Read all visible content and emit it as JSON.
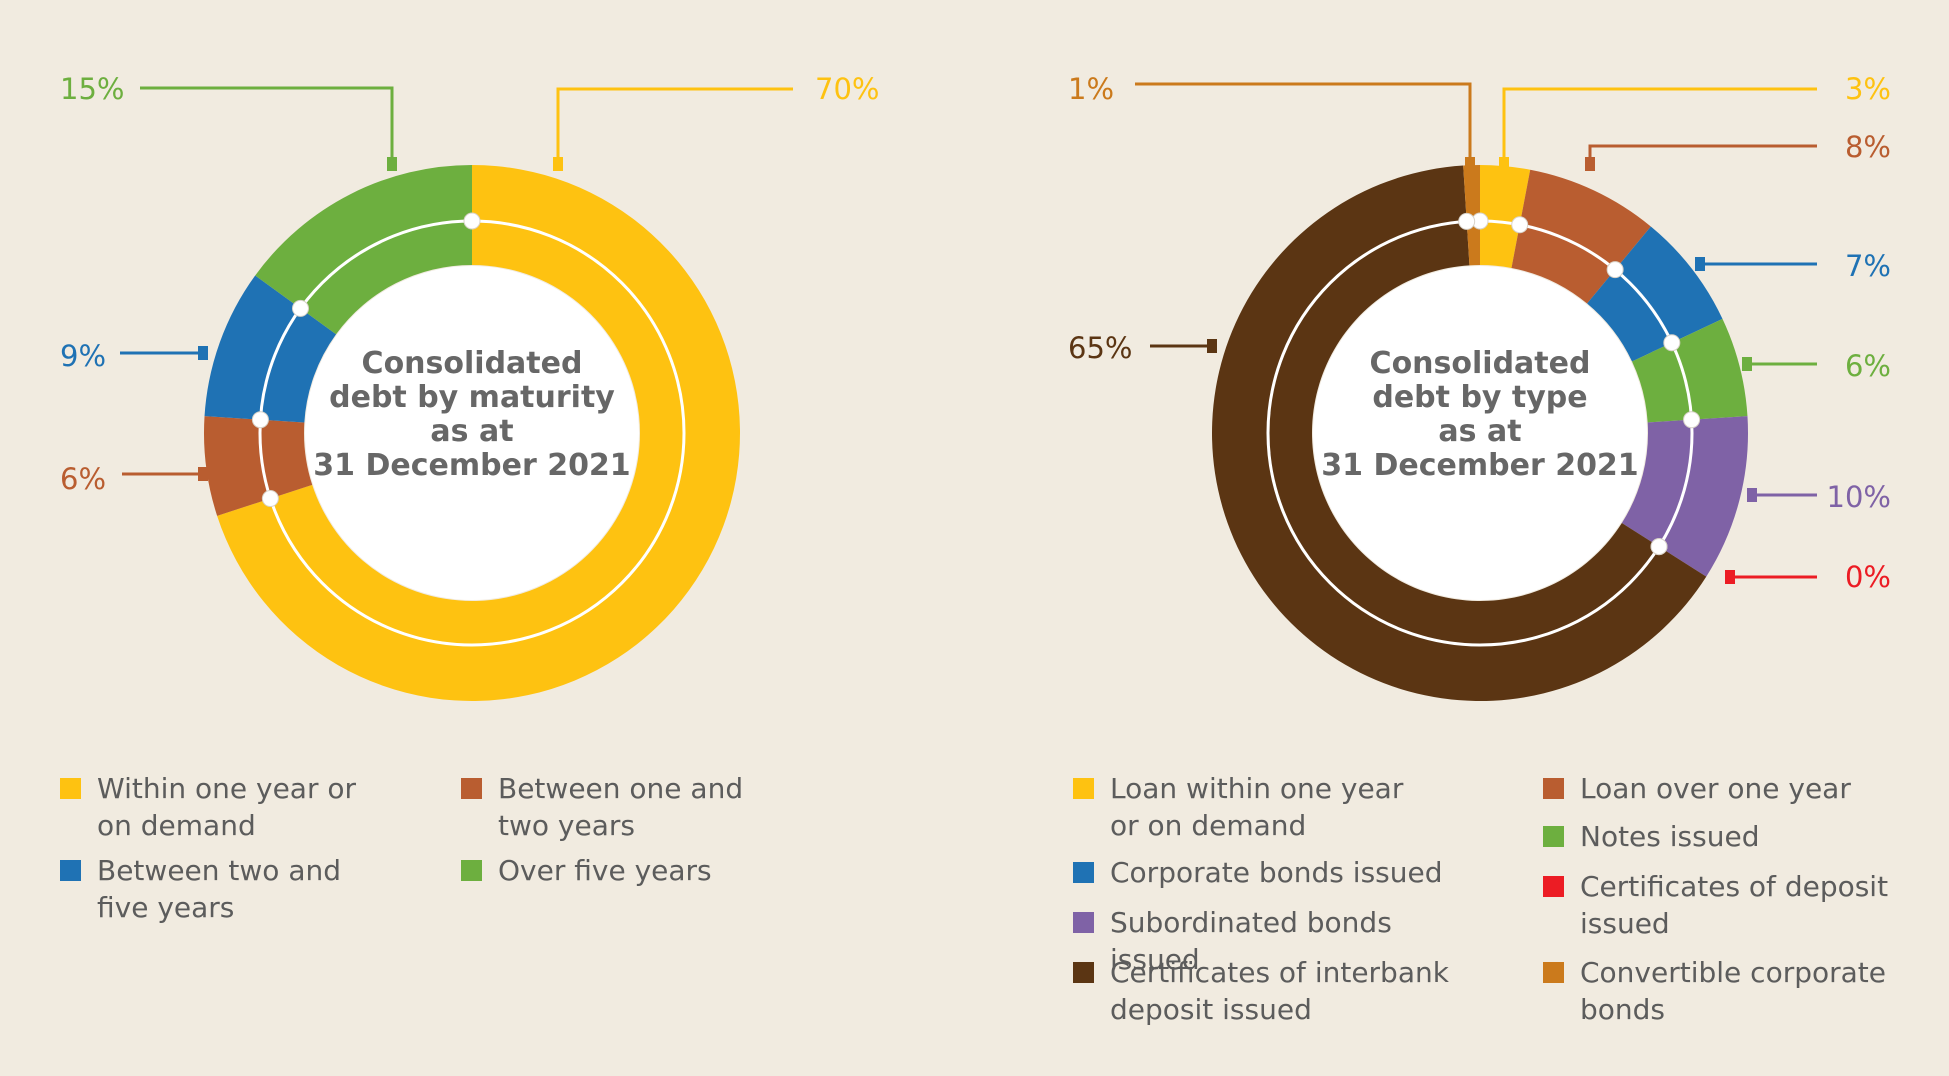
{
  "chart_data": [
    {
      "type": "pie",
      "title": "Consolidated debt by maturity as at 31 December 2021",
      "title_lines": [
        "Consolidated",
        "debt by maturity",
        "as at",
        "31 December 2021"
      ],
      "slices": [
        {
          "name": "Within one year or on demand",
          "legend_label": "Within one year or\non demand",
          "value": 70,
          "label": "70%",
          "color": "#fec211"
        },
        {
          "name": "Between one and two years",
          "legend_label": "Between one and\ntwo years",
          "value": 6,
          "label": "6%",
          "color": "#b95d30"
        },
        {
          "name": "Between two and five years",
          "legend_label": "Between two and\n five years",
          "value": 9,
          "label": "9%",
          "color": "#1f72b4"
        },
        {
          "name": "Over five years",
          "legend_label": "Over five years",
          "value": 15,
          "label": "15%",
          "color": "#6daf3f"
        }
      ]
    },
    {
      "type": "pie",
      "title": "Consolidated debt by type as at 31 December 2021",
      "title_lines": [
        "Consolidated",
        "debt by type",
        "as at",
        "31 December 2021"
      ],
      "slices": [
        {
          "name": "Loan within one year or on demand",
          "legend_label": "Loan within one year\nor on demand",
          "value": 3,
          "label": "3%",
          "color": "#fec211"
        },
        {
          "name": "Loan over one year",
          "legend_label": "Loan over one year",
          "value": 8,
          "label": "8%",
          "color": "#b95d30"
        },
        {
          "name": "Corporate bonds issued",
          "legend_label": "Corporate bonds issued",
          "value": 7,
          "label": "7%",
          "color": "#1f72b4"
        },
        {
          "name": "Notes issued",
          "legend_label": "Notes issued",
          "value": 6,
          "label": "6%",
          "color": "#6daf3f"
        },
        {
          "name": "Subordinated bonds issued",
          "legend_label": "Subordinated bonds issued",
          "value": 10,
          "label": "10%",
          "color": "#7f62a6"
        },
        {
          "name": "Certificates of deposit issued",
          "legend_label": "Certificates of deposit\nissued",
          "value": 0,
          "label": "0%",
          "color": "#ec1c24"
        },
        {
          "name": "Certificates of interbank deposit issued",
          "legend_label": "Certificates of interbank\ndeposit issued",
          "value": 65,
          "label": "65%",
          "color": "#5b3513"
        },
        {
          "name": "Convertible corporate bonds",
          "legend_label": "Convertible corporate\nbonds",
          "value": 1,
          "label": "1%",
          "color": "#cb7a1c"
        }
      ]
    }
  ]
}
